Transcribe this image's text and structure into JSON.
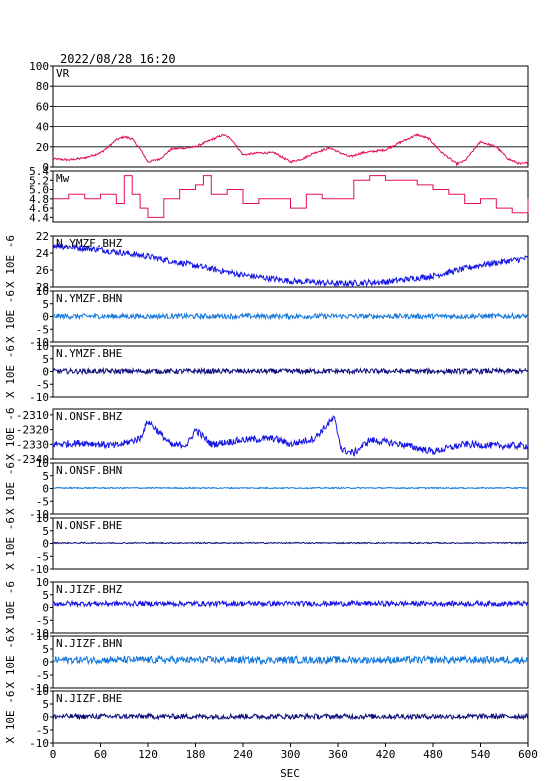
{
  "header": {
    "datetime": "2022/08/28  16:20"
  },
  "xaxis": {
    "label": "SEC",
    "range": [
      0,
      600
    ],
    "ticks": [
      0,
      60,
      120,
      180,
      240,
      300,
      360,
      420,
      480,
      540,
      600
    ]
  },
  "chart_data": [
    {
      "type": "line",
      "title": "VR",
      "ylim": [
        0,
        100
      ],
      "yticks": [
        0,
        20,
        40,
        60,
        80,
        100
      ],
      "grid": "horizontal",
      "color": "#e0104a",
      "series": [
        {
          "x": [
            0,
            20,
            40,
            60,
            70,
            80,
            90,
            100,
            110,
            120,
            135,
            150,
            170,
            180,
            200,
            215,
            225,
            240,
            260,
            280,
            300,
            315,
            330,
            350,
            360,
            375,
            390,
            420,
            440,
            460,
            475,
            490,
            510,
            520,
            540,
            560,
            575,
            590,
            600
          ],
          "values": [
            8,
            7,
            9,
            14,
            20,
            27,
            30,
            28,
            18,
            5,
            8,
            18,
            19,
            20,
            27,
            32,
            28,
            12,
            14,
            14,
            5,
            8,
            14,
            19,
            15,
            10,
            14,
            17,
            25,
            32,
            28,
            15,
            3,
            6,
            25,
            20,
            8,
            3,
            4
          ]
        }
      ]
    },
    {
      "type": "line",
      "title": "Mw",
      "ylim": [
        4.3,
        5.4
      ],
      "yticks": [
        4.4,
        4.6,
        4.8,
        5.0,
        5.2,
        5.4
      ],
      "ytick_labels": [
        "4.4",
        "4.6",
        "4.8",
        "5.0",
        "5.2",
        "5.4"
      ],
      "color": "#e0104a",
      "series": [
        {
          "x": [
            0,
            20,
            40,
            60,
            80,
            90,
            100,
            110,
            120,
            140,
            160,
            180,
            190,
            200,
            220,
            240,
            260,
            280,
            300,
            320,
            340,
            360,
            380,
            400,
            420,
            440,
            460,
            480,
            500,
            520,
            540,
            560,
            580,
            600
          ],
          "values": [
            4.8,
            4.9,
            4.8,
            4.9,
            4.7,
            5.3,
            4.9,
            4.6,
            4.4,
            4.8,
            5.0,
            5.1,
            5.3,
            4.9,
            5.0,
            4.7,
            4.8,
            4.8,
            4.6,
            4.9,
            4.8,
            4.8,
            5.2,
            5.3,
            5.2,
            5.2,
            5.1,
            5.0,
            4.9,
            4.7,
            4.8,
            4.6,
            4.5,
            4.8
          ]
        }
      ]
    },
    {
      "type": "line",
      "title": "N.YMZF.BHZ",
      "ylim": [
        -28,
        -22
      ],
      "yreversed": true,
      "yticks": [
        -22,
        -24,
        -26,
        -28
      ],
      "ytick_labels": [
        "22",
        "24",
        "26",
        "28"
      ],
      "ylabel": "X 10E -6",
      "color": "#1414e6",
      "series": [
        {
          "x": [
            0,
            60,
            120,
            180,
            240,
            300,
            360,
            420,
            480,
            540,
            600
          ],
          "values": [
            -23.1,
            -23.6,
            -24.4,
            -25.5,
            -26.6,
            -27.3,
            -27.6,
            -27.4,
            -26.7,
            -25.4,
            -24.6
          ]
        }
      ]
    },
    {
      "type": "line",
      "title": "N.YMZF.BHN",
      "ylim": [
        -10,
        10
      ],
      "yticks": [
        -10,
        -5,
        0,
        5,
        10
      ],
      "ylabel": "X 10E -6",
      "color": "#1478dc",
      "series": [
        {
          "x": [
            0,
            600
          ],
          "values": [
            0.1,
            0.1
          ]
        }
      ]
    },
    {
      "type": "line",
      "title": "N.YMZF.BHE",
      "ylim": [
        -10,
        10
      ],
      "yticks": [
        -10,
        -5,
        0,
        5,
        10
      ],
      "ylabel": "X 10E -6",
      "color": "#0a0a78",
      "series": [
        {
          "x": [
            0,
            600
          ],
          "values": [
            0.1,
            0.1
          ]
        }
      ]
    },
    {
      "type": "line",
      "title": "N.ONSF.BHZ",
      "ylim": [
        -2340,
        -2306
      ],
      "yticks": [
        -2310,
        -2320,
        -2330,
        -2340
      ],
      "ytick_labels": [
        "-2310",
        "-2320",
        "-2330",
        "-2340"
      ],
      "ylabel": "X 10E -6",
      "color": "#1414e6",
      "series": [
        {
          "x": [
            0,
            40,
            80,
            110,
            120,
            150,
            170,
            180,
            200,
            240,
            280,
            300,
            330,
            355,
            365,
            380,
            400,
            440,
            480,
            520,
            560,
            600
          ],
          "values": [
            -2330,
            -2329,
            -2331,
            -2326,
            -2314,
            -2331,
            -2330,
            -2320,
            -2330,
            -2327,
            -2326,
            -2330,
            -2326,
            -2312,
            -2334,
            -2336,
            -2327,
            -2330,
            -2335,
            -2330,
            -2331,
            -2331
          ]
        }
      ]
    },
    {
      "type": "line",
      "title": "N.ONSF.BHN",
      "ylim": [
        -10,
        10
      ],
      "yticks": [
        -10,
        -5,
        0,
        5,
        10
      ],
      "ylabel": "X 10E -6",
      "color": "#1478dc",
      "series": [
        {
          "x": [
            0,
            600
          ],
          "values": [
            0.2,
            0.2
          ]
        }
      ]
    },
    {
      "type": "line",
      "title": "N.ONSF.BHE",
      "ylim": [
        -10,
        10
      ],
      "yticks": [
        -10,
        -5,
        0,
        5,
        10
      ],
      "ylabel": "X 10E -6",
      "color": "#0a0a78",
      "series": [
        {
          "x": [
            0,
            600
          ],
          "values": [
            0.2,
            0.2
          ]
        }
      ]
    },
    {
      "type": "line",
      "title": "N.JIZF.BHZ",
      "ylim": [
        -10,
        10
      ],
      "yticks": [
        -10,
        -5,
        0,
        5,
        10
      ],
      "ylabel": "X 10E -6",
      "color": "#1414e6",
      "series": [
        {
          "x": [
            0,
            600
          ],
          "values": [
            1.5,
            1.5
          ]
        }
      ]
    },
    {
      "type": "line",
      "title": "N.JIZF.BHN",
      "ylim": [
        -10,
        10
      ],
      "yticks": [
        -10,
        -5,
        0,
        5,
        10
      ],
      "ylabel": "X 10E -6",
      "color": "#1478dc",
      "series": [
        {
          "x": [
            0,
            600
          ],
          "values": [
            0.8,
            0.8
          ]
        }
      ]
    },
    {
      "type": "line",
      "title": "N.JIZF.BHE",
      "ylim": [
        -10,
        10
      ],
      "yticks": [
        -10,
        -5,
        0,
        5,
        10
      ],
      "ylabel": "X 10E -6",
      "color": "#0a0a78",
      "series": [
        {
          "x": [
            0,
            600
          ],
          "values": [
            0.2,
            0.2
          ]
        }
      ]
    }
  ]
}
